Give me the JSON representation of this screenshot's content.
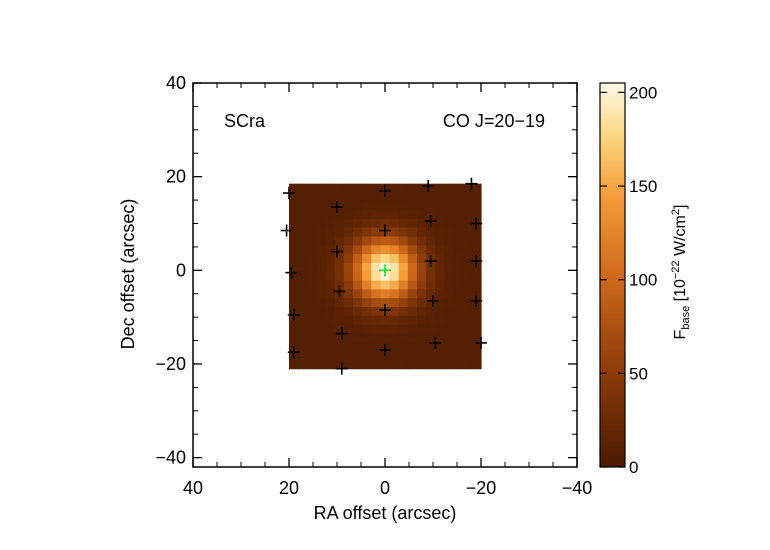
{
  "chart_data": {
    "type": "heatmap",
    "source_label": "SCra",
    "line_label": "CO J=20−19",
    "xlabel": "RA offset (arcsec)",
    "ylabel": "Dec offset (arcsec)",
    "x_reversed": true,
    "xlim": [
      40,
      -40
    ],
    "ylim": [
      -42,
      40
    ],
    "x_ticks": [
      40,
      20,
      0,
      -20,
      -40
    ],
    "x_tick_labels": [
      "40",
      "20",
      "0",
      "−20",
      "−40"
    ],
    "y_ticks": [
      40,
      20,
      0,
      -20,
      -40
    ],
    "y_tick_labels": [
      "40",
      "20",
      "0",
      "−20",
      "−40"
    ],
    "map_extent": {
      "ra": [
        20,
        -20
      ],
      "dec": [
        -21,
        18.5
      ]
    },
    "map_grid": {
      "nx": 21,
      "ny": 21
    },
    "peak": {
      "ra": 0,
      "dec": 0,
      "value": 205
    },
    "background_value": 8,
    "fwhm_arcsec": 11,
    "colorbar": {
      "range": [
        0,
        205
      ],
      "ticks": [
        0,
        50,
        100,
        150,
        200
      ],
      "tick_labels": [
        "0",
        "50",
        "100",
        "150",
        "200"
      ],
      "label_main": "F",
      "label_sub": "base",
      "label_rest": " [10",
      "label_exp": "−22",
      "label_unit": " W/cm",
      "label_exp2": "2",
      "label_close": "]"
    },
    "pointings": [
      {
        "ra": 20,
        "dec": 16.5
      },
      {
        "ra": 10,
        "dec": 13.5
      },
      {
        "ra": 0,
        "dec": 17
      },
      {
        "ra": -9,
        "dec": 18
      },
      {
        "ra": -18,
        "dec": 18.5
      },
      {
        "ra": 20.5,
        "dec": 8.5
      },
      {
        "ra": 10,
        "dec": 4
      },
      {
        "ra": 0,
        "dec": 8.5
      },
      {
        "ra": -9.5,
        "dec": 10.5
      },
      {
        "ra": -19,
        "dec": 10
      },
      {
        "ra": 19.5,
        "dec": -0.5
      },
      {
        "ra": -9.5,
        "dec": 2
      },
      {
        "ra": -19,
        "dec": 2
      },
      {
        "ra": 9.5,
        "dec": -4.5
      },
      {
        "ra": 0,
        "dec": -8.5
      },
      {
        "ra": -10,
        "dec": -6.5
      },
      {
        "ra": -19,
        "dec": -6.5
      },
      {
        "ra": 19,
        "dec": -9.5
      },
      {
        "ra": 9,
        "dec": -13.5
      },
      {
        "ra": 0,
        "dec": -17
      },
      {
        "ra": -10.5,
        "dec": -15.5
      },
      {
        "ra": -20,
        "dec": -15.5
      },
      {
        "ra": 19,
        "dec": -17.5
      },
      {
        "ra": 9,
        "dec": -21
      }
    ],
    "center_marker": {
      "ra": 0,
      "dec": 0,
      "color": "#22dd22"
    }
  }
}
